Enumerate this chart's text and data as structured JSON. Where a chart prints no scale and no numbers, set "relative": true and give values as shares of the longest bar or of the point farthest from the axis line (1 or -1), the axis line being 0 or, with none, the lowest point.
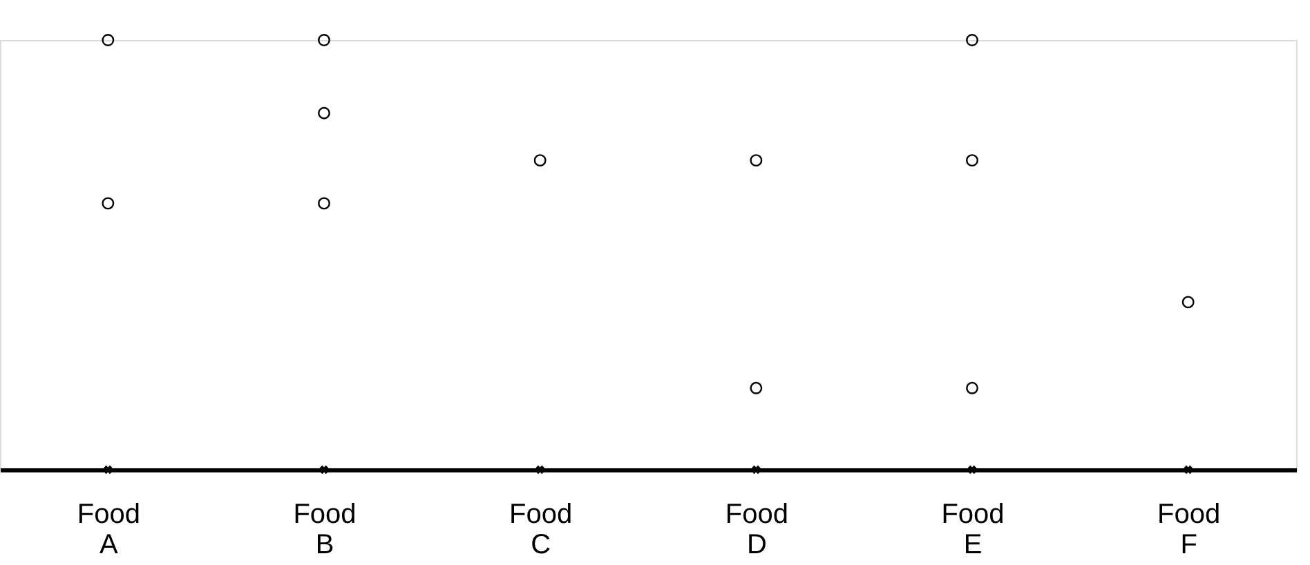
{
  "chart_data": {
    "type": "scatter",
    "relative": true,
    "grid": false,
    "categories": [
      "Food A",
      "Food B",
      "Food C",
      "Food D",
      "Food E",
      "Food F"
    ],
    "series": [
      {
        "color": "#000000",
        "marker": "circle",
        "x": [
          "Food A",
          "Food A",
          "Food B",
          "Food B",
          "Food B",
          "Food C",
          "Food D",
          "Food D",
          "Food E",
          "Food E",
          "Food E",
          "Food F"
        ],
        "values": [
          1,
          0.62,
          1,
          0.83,
          0.62,
          0.72,
          0.72,
          0.19,
          1,
          0.72,
          0.19,
          0.39
        ]
      },
      {
        "color": "#000000",
        "marker": "cross",
        "x": [
          "Food A",
          "Food B",
          "Food C",
          "Food D",
          "Food E",
          "Food F"
        ],
        "values": [
          0,
          0,
          0,
          0,
          0,
          0
        ]
      }
    ]
  }
}
